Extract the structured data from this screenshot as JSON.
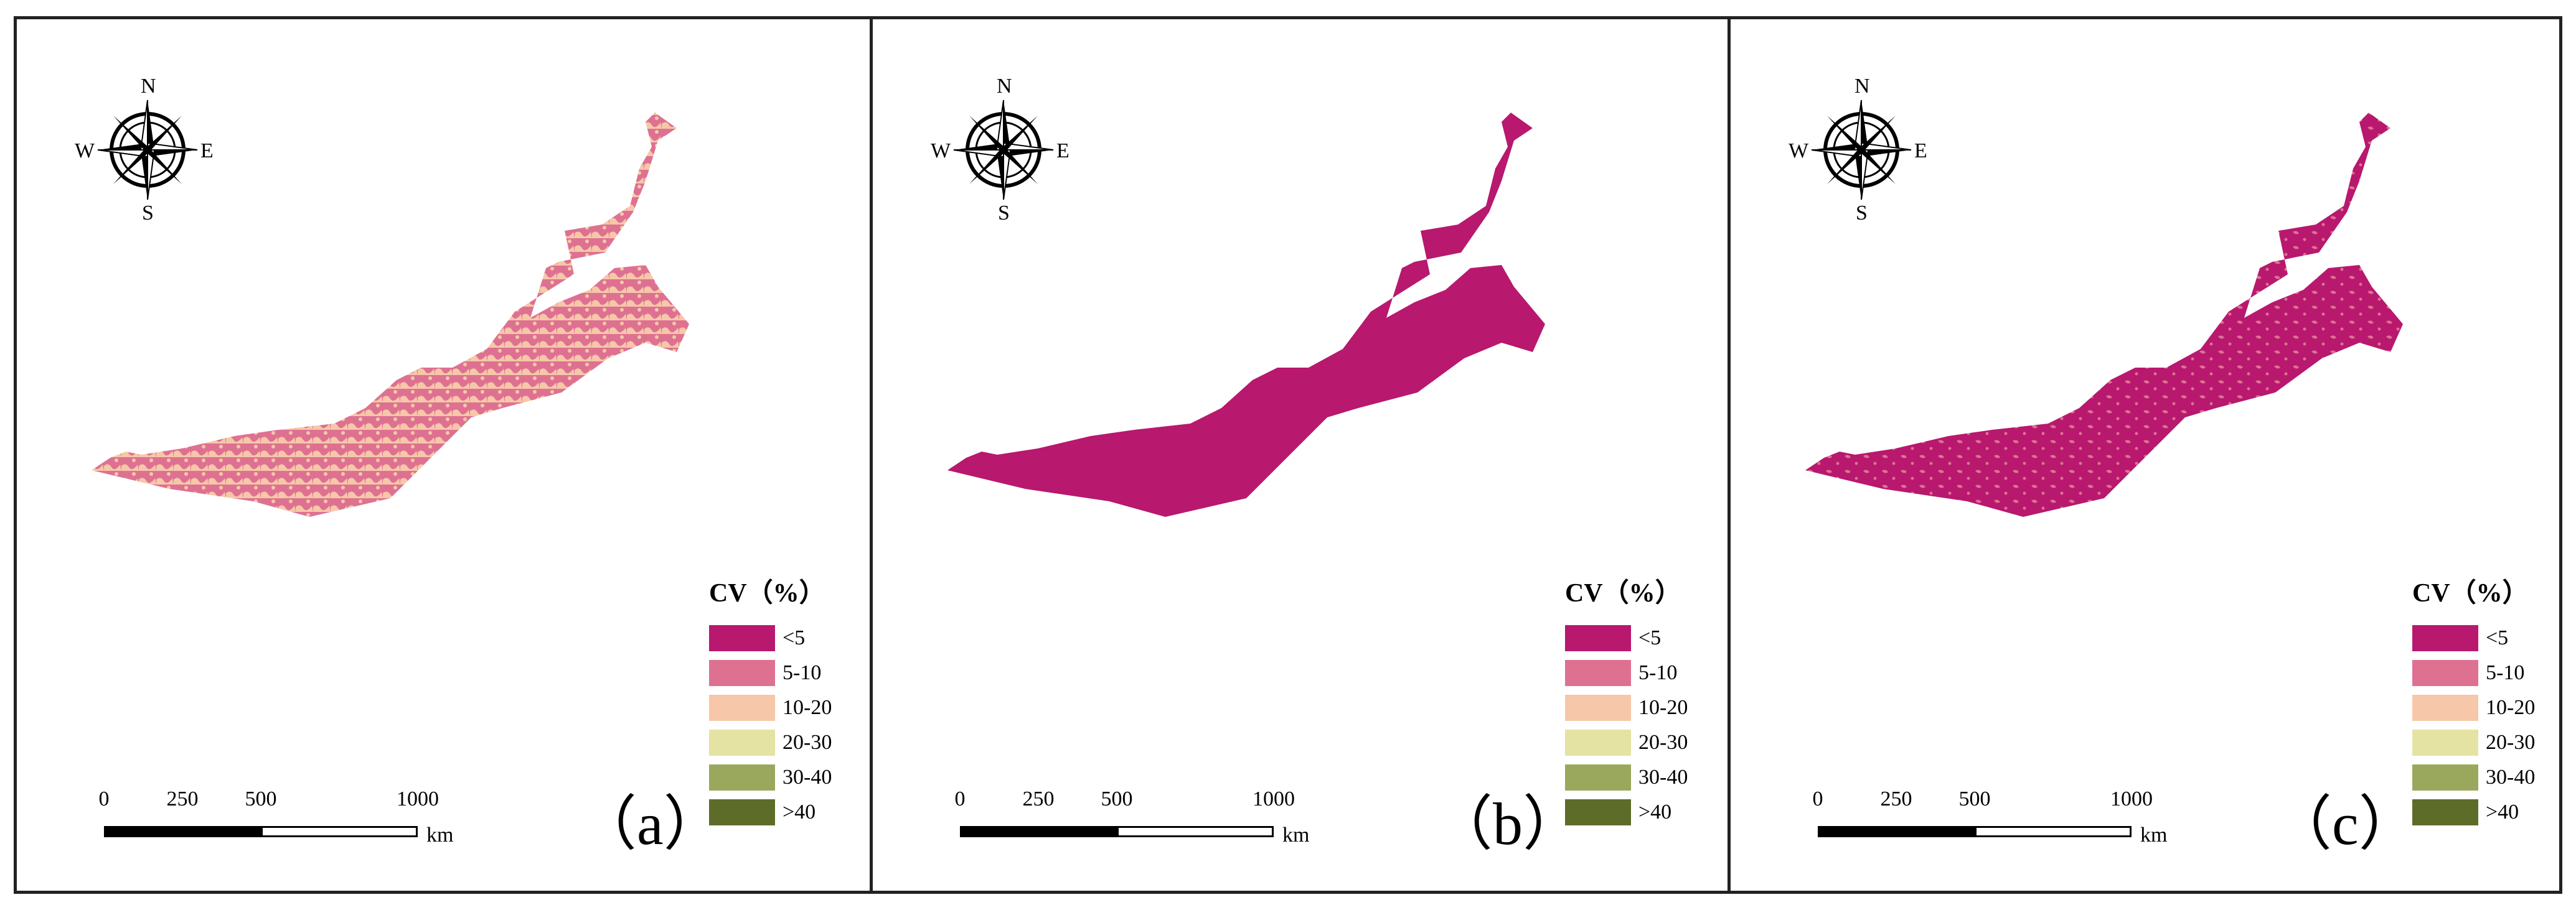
{
  "legend": {
    "title": "CV（%）",
    "classes": [
      {
        "label": "<5",
        "color": "#b8186e"
      },
      {
        "label": "5-10",
        "color": "#de7191"
      },
      {
        "label": "10-20",
        "color": "#f6c7a8"
      },
      {
        "label": "20-30",
        "color": "#e4e3a3"
      },
      {
        "label": "30-40",
        "color": "#9aa85e"
      },
      {
        "label": ">40",
        "color": "#5e6c2a"
      }
    ]
  },
  "compass": {
    "n": "N",
    "s": "S",
    "e": "E",
    "w": "W"
  },
  "scale_bar": {
    "ticks": [
      "0",
      "250",
      "500",
      "1000"
    ],
    "unit": "km"
  },
  "panels": [
    {
      "label": "（a）",
      "dominant_class": "5-10",
      "mix": [
        {
          "class": "<5",
          "share": 0.01
        },
        {
          "class": "5-10",
          "share": 0.64
        },
        {
          "class": "10-20",
          "share": 0.35
        }
      ]
    },
    {
      "label": "（b）",
      "dominant_class": "<5",
      "mix": [
        {
          "class": "<5",
          "share": 1.0
        }
      ]
    },
    {
      "label": "（c）",
      "dominant_class": "<5",
      "mix": [
        {
          "class": "<5",
          "share": 0.88
        },
        {
          "class": "5-10",
          "share": 0.12
        }
      ]
    }
  ]
}
